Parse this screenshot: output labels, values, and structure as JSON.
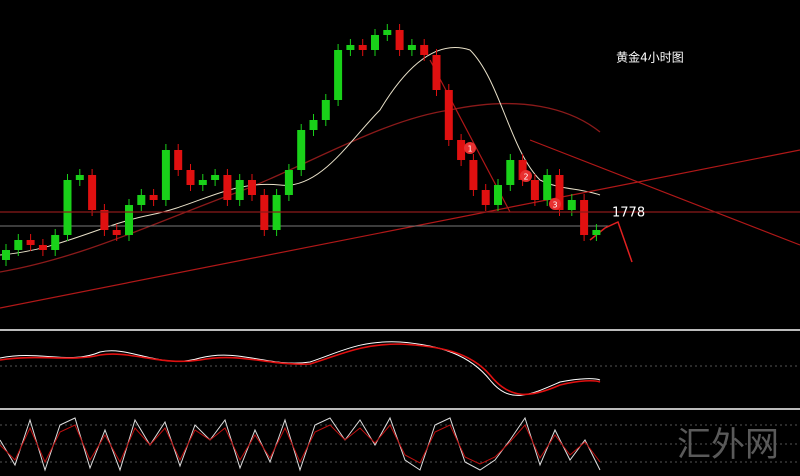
{
  "chart_data": {
    "type": "candlestick",
    "title": "黄金4小时图",
    "up_color": "#19d119",
    "down_color": "#e01010",
    "ylim": [
      1758.4,
      1820.4
    ],
    "level": 1778,
    "annotations": [
      "1",
      "2",
      "3"
    ],
    "watermark": "汇外网",
    "open": [
      1768.4,
      1770.4,
      1772.4,
      1771.4,
      1770.4,
      1773.4,
      1784.4,
      1785.4,
      1778.4,
      1774.4,
      1773.4,
      1779.4,
      1781.4,
      1780.4,
      1790.4,
      1786.4,
      1783.4,
      1784.4,
      1785.4,
      1780.4,
      1784.4,
      1781.4,
      1774.4,
      1781.4,
      1786.4,
      1794.4,
      1796.4,
      1800.4,
      1810.4,
      1811.4,
      1810.4,
      1813.4,
      1814.4,
      1810.4,
      1811.4,
      1809.4,
      1802.4,
      1792.4,
      1788.4,
      1782.4,
      1779.4,
      1783.4,
      1788.4,
      1784.4,
      1780.4,
      1785.4,
      1778.4,
      1780.4,
      1773.4
    ],
    "high": [
      1771.6,
      1773.6,
      1773.6,
      1772.6,
      1774.6,
      1785.6,
      1786.6,
      1786.6,
      1779.6,
      1775.6,
      1780.6,
      1782.6,
      1782.6,
      1791.6,
      1791.6,
      1787.6,
      1785.6,
      1786.6,
      1786.6,
      1785.6,
      1785.6,
      1782.6,
      1782.6,
      1787.6,
      1795.6,
      1797.6,
      1801.6,
      1811.6,
      1812.6,
      1812.6,
      1814.6,
      1815.6,
      1815.6,
      1812.6,
      1812.6,
      1810.6,
      1803.6,
      1793.6,
      1789.6,
      1783.6,
      1784.6,
      1789.6,
      1789.6,
      1785.6,
      1786.6,
      1786.6,
      1781.6,
      1781.6,
      1775.6
    ],
    "low": [
      1767.2,
      1769.2,
      1770.2,
      1769.2,
      1769.2,
      1772.2,
      1783.2,
      1777.2,
      1773.2,
      1772.2,
      1772.2,
      1778.2,
      1779.2,
      1779.2,
      1785.2,
      1782.2,
      1782.2,
      1783.2,
      1779.2,
      1779.2,
      1780.2,
      1773.2,
      1773.2,
      1780.2,
      1785.2,
      1793.2,
      1795.2,
      1799.2,
      1809.2,
      1809.2,
      1809.2,
      1812.2,
      1809.2,
      1809.2,
      1808.2,
      1801.2,
      1791.2,
      1787.2,
      1781.2,
      1778.2,
      1778.2,
      1782.2,
      1783.2,
      1779.2,
      1779.2,
      1777.2,
      1777.2,
      1772.2,
      1772.2
    ],
    "close": [
      1770.4,
      1772.4,
      1771.4,
      1770.4,
      1773.4,
      1784.4,
      1785.4,
      1778.4,
      1774.4,
      1773.4,
      1779.4,
      1781.4,
      1780.4,
      1790.4,
      1786.4,
      1783.4,
      1784.4,
      1785.4,
      1780.4,
      1784.4,
      1781.4,
      1774.4,
      1781.4,
      1786.4,
      1794.4,
      1796.4,
      1800.4,
      1810.4,
      1811.4,
      1810.4,
      1813.4,
      1814.4,
      1810.4,
      1811.4,
      1809.4,
      1802.4,
      1792.4,
      1788.4,
      1782.4,
      1779.4,
      1783.4,
      1788.4,
      1784.4,
      1780.4,
      1785.4,
      1778.4,
      1780.4,
      1773.4,
      1774.4
    ]
  }
}
